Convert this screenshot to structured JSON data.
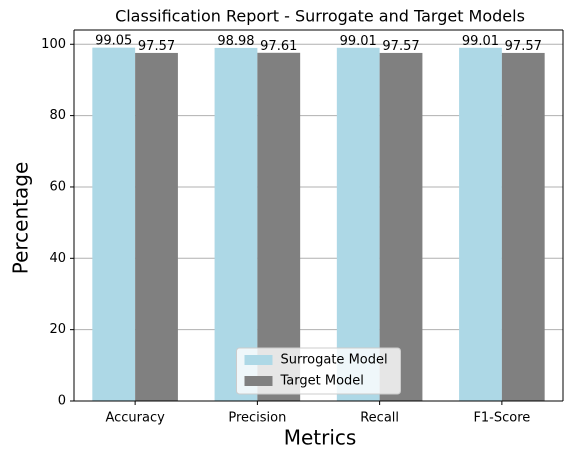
{
  "chart_data": {
    "type": "bar",
    "title": "Classification Report - Surrogate and Target Models",
    "x_label": "Metrics",
    "y_label": "Percentage",
    "categories": [
      "Accuracy",
      "Precision",
      "Recall",
      "F1-Score"
    ],
    "series": [
      {
        "name": "Surrogate Model",
        "color": "#add8e6",
        "values": [
          99.05,
          98.98,
          99.01,
          99.01
        ]
      },
      {
        "name": "Target Model",
        "color": "#808080",
        "values": [
          97.57,
          97.61,
          97.57,
          97.57
        ]
      }
    ],
    "ylim": [
      0,
      104
    ],
    "yticks": [
      0,
      20,
      40,
      60,
      80,
      100
    ],
    "grid": true,
    "legend": "lower center"
  }
}
